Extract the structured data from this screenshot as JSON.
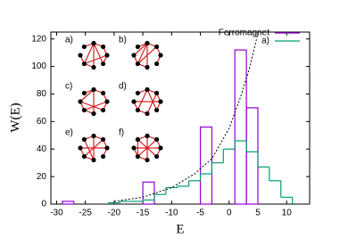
{
  "chart_data": {
    "type": "histogram",
    "xlabel": "E",
    "ylabel": "W(E)",
    "xlim": [
      -31,
      14
    ],
    "ylim": [
      0,
      125
    ],
    "xticks": [
      -30,
      -25,
      -20,
      -15,
      -10,
      -5,
      0,
      5,
      10
    ],
    "yticks": [
      0,
      20,
      40,
      60,
      80,
      100,
      120
    ],
    "legend": "top-right",
    "series": [
      {
        "name": "Ferromagnet",
        "color": "#9400d3",
        "style": "bars",
        "bins": [
          -29,
          -27,
          -25,
          -23,
          -21,
          -19,
          -17,
          -15,
          -13,
          -11,
          -9,
          -7,
          -5,
          -3,
          -1,
          1,
          3,
          5
        ],
        "values": [
          2,
          0,
          0,
          0,
          0,
          0,
          0,
          16,
          0,
          0,
          0,
          0,
          56,
          0,
          0,
          112,
          70
        ]
      },
      {
        "name": "a)",
        "color": "#009e73",
        "style": "steps",
        "bins": [
          -21,
          -19,
          -17,
          -15,
          -13,
          -11,
          -9,
          -7,
          -5,
          -3,
          -1,
          1,
          3,
          5,
          7,
          9,
          11
        ],
        "values": [
          1,
          2,
          2,
          3,
          7,
          12,
          13,
          17,
          22,
          30,
          40,
          46,
          38,
          27,
          17,
          5
        ]
      }
    ],
    "curve": {
      "color": "#000000",
      "dash": true,
      "x": [
        -20,
        -15,
        -10,
        -6,
        -3,
        0,
        2,
        3.5,
        5
      ],
      "values": [
        2,
        5,
        12,
        22,
        33,
        55,
        78,
        98,
        124
      ]
    },
    "insets": [
      "a)",
      "b)",
      "c)",
      "d)",
      "e)",
      "f)"
    ]
  }
}
